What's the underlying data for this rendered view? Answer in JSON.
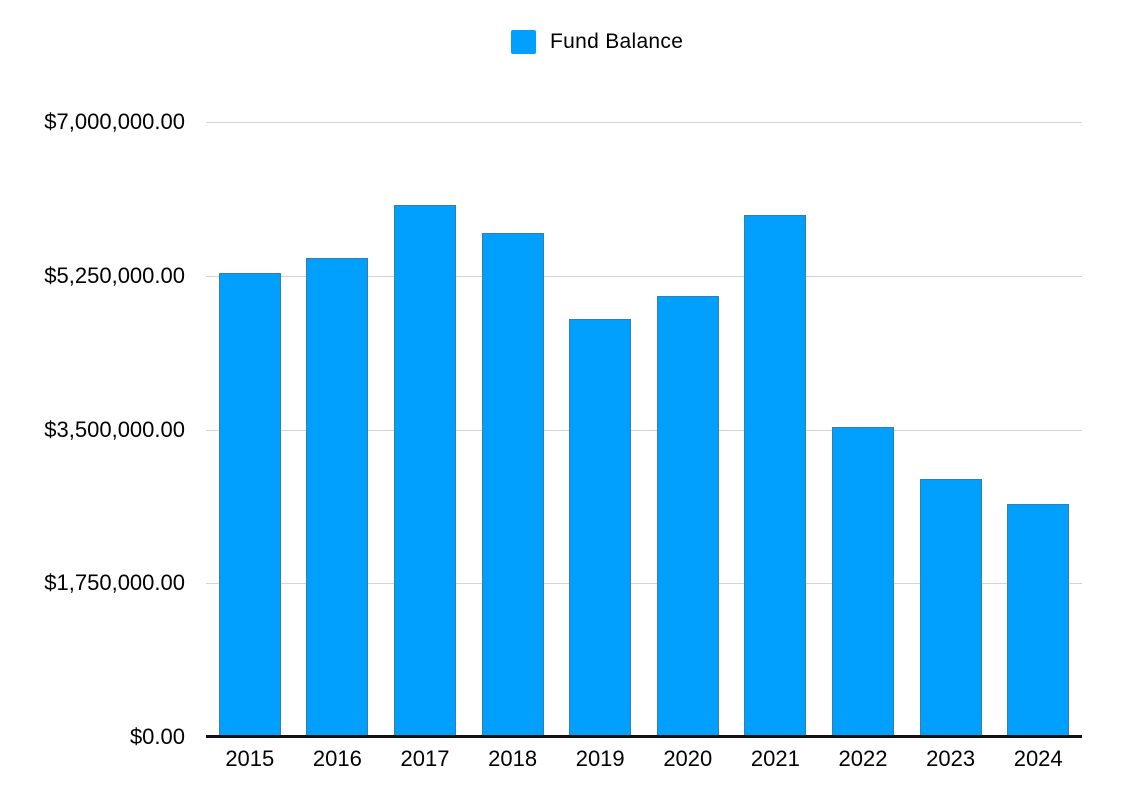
{
  "chart_data": {
    "type": "bar",
    "title": "",
    "xlabel": "",
    "ylabel": "",
    "categories": [
      "2015",
      "2016",
      "2017",
      "2018",
      "2019",
      "2020",
      "2021",
      "2022",
      "2023",
      "2024"
    ],
    "series": [
      {
        "name": "Fund Balance",
        "values": [
          5280000,
          5450000,
          6060000,
          5740000,
          4760000,
          5020000,
          5940000,
          3530000,
          2940000,
          2650000
        ]
      }
    ],
    "ylim": [
      0,
      7000000
    ],
    "y_ticks": [
      {
        "value": 0,
        "label": "$0.00"
      },
      {
        "value": 1750000,
        "label": "$1,750,000.00"
      },
      {
        "value": 3500000,
        "label": "$3,500,000.00"
      },
      {
        "value": 5250000,
        "label": "$5,250,000.00"
      },
      {
        "value": 7000000,
        "label": "$7,000,000.00"
      }
    ],
    "grid": true,
    "legend_position": "top"
  },
  "legend": {
    "label": "Fund Balance"
  },
  "colors": {
    "bar": "#01A0FF",
    "gridline": "#D4D4D4",
    "axis_line": "#111111",
    "text": "#000000",
    "background": "#FFFFFF"
  }
}
